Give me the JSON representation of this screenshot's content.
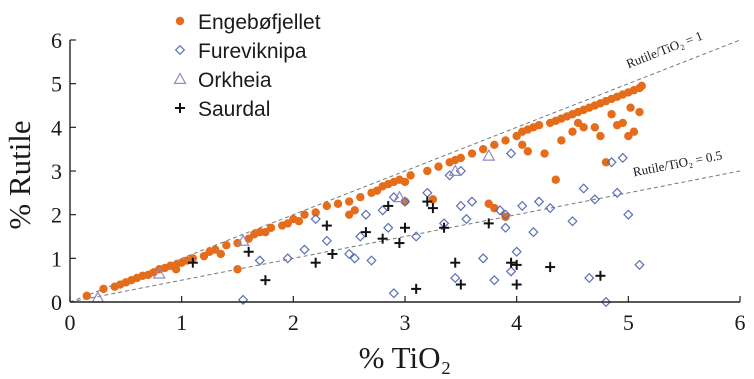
{
  "chart_data": {
    "type": "scatter",
    "xlabel": "% TiO₂",
    "ylabel": "% Rutile",
    "xlim": [
      0,
      6
    ],
    "ylim": [
      0,
      6
    ],
    "xticks": [
      "0",
      "1",
      "2",
      "3",
      "4",
      "5",
      "6"
    ],
    "yticks": [
      "0",
      "1",
      "2",
      "3",
      "4",
      "5",
      "6"
    ],
    "grid": false,
    "legend_position": "top-left",
    "series": [
      {
        "name": "Engebøfjellet",
        "marker": "filled-circle",
        "color": "#e46c1b",
        "points": [
          [
            0.15,
            0.14
          ],
          [
            0.3,
            0.3
          ],
          [
            0.4,
            0.35
          ],
          [
            0.45,
            0.4
          ],
          [
            0.5,
            0.45
          ],
          [
            0.55,
            0.5
          ],
          [
            0.6,
            0.55
          ],
          [
            0.65,
            0.6
          ],
          [
            0.7,
            0.62
          ],
          [
            0.75,
            0.68
          ],
          [
            0.8,
            0.75
          ],
          [
            0.85,
            0.78
          ],
          [
            0.9,
            0.83
          ],
          [
            0.95,
            0.85
          ],
          [
            1.0,
            0.9
          ],
          [
            1.05,
            0.95
          ],
          [
            1.1,
            1.0
          ],
          [
            1.2,
            1.05
          ],
          [
            1.25,
            1.15
          ],
          [
            1.3,
            1.2
          ],
          [
            1.4,
            1.3
          ],
          [
            1.5,
            1.35
          ],
          [
            1.6,
            1.45
          ],
          [
            1.65,
            1.55
          ],
          [
            1.7,
            1.6
          ],
          [
            1.75,
            1.6
          ],
          [
            1.8,
            1.7
          ],
          [
            1.9,
            1.75
          ],
          [
            1.95,
            1.8
          ],
          [
            2.0,
            1.9
          ],
          [
            2.1,
            2.0
          ],
          [
            2.2,
            2.05
          ],
          [
            2.3,
            2.2
          ],
          [
            2.4,
            2.25
          ],
          [
            2.5,
            2.3
          ],
          [
            2.6,
            2.4
          ],
          [
            2.7,
            2.5
          ],
          [
            2.8,
            2.65
          ],
          [
            2.85,
            2.7
          ],
          [
            2.9,
            2.75
          ],
          [
            2.95,
            2.8
          ],
          [
            3.0,
            2.75
          ],
          [
            3.05,
            2.9
          ],
          [
            3.2,
            3.0
          ],
          [
            3.3,
            3.1
          ],
          [
            3.4,
            3.2
          ],
          [
            3.45,
            3.25
          ],
          [
            3.5,
            3.3
          ],
          [
            3.6,
            3.4
          ],
          [
            3.7,
            3.5
          ],
          [
            3.8,
            3.6
          ],
          [
            3.9,
            3.7
          ],
          [
            4.0,
            3.8
          ],
          [
            4.05,
            3.9
          ],
          [
            4.1,
            3.95
          ],
          [
            4.15,
            4.0
          ],
          [
            4.2,
            4.05
          ],
          [
            4.3,
            4.1
          ],
          [
            4.35,
            4.15
          ],
          [
            4.4,
            4.2
          ],
          [
            4.45,
            4.25
          ],
          [
            4.5,
            4.3
          ],
          [
            4.55,
            4.35
          ],
          [
            4.6,
            4.4
          ],
          [
            4.65,
            4.45
          ],
          [
            4.7,
            4.5
          ],
          [
            4.75,
            4.55
          ],
          [
            4.8,
            4.6
          ],
          [
            4.85,
            4.65
          ],
          [
            4.9,
            4.7
          ],
          [
            4.95,
            4.75
          ],
          [
            5.0,
            4.8
          ],
          [
            5.05,
            4.85
          ],
          [
            5.1,
            4.9
          ],
          [
            5.12,
            4.95
          ],
          [
            0.95,
            0.75
          ],
          [
            1.5,
            0.75
          ],
          [
            1.35,
            1.1
          ],
          [
            2.05,
            1.85
          ],
          [
            2.5,
            2.0
          ],
          [
            2.55,
            2.1
          ],
          [
            2.75,
            2.55
          ],
          [
            3.0,
            2.3
          ],
          [
            3.25,
            2.35
          ],
          [
            3.75,
            2.25
          ],
          [
            3.8,
            2.15
          ],
          [
            3.9,
            1.95
          ],
          [
            4.05,
            3.6
          ],
          [
            4.1,
            3.45
          ],
          [
            4.35,
            2.8
          ],
          [
            4.4,
            3.7
          ],
          [
            4.5,
            3.9
          ],
          [
            4.55,
            4.1
          ],
          [
            4.7,
            4.0
          ],
          [
            4.75,
            3.8
          ],
          [
            4.8,
            3.2
          ],
          [
            4.85,
            4.3
          ],
          [
            4.95,
            4.1
          ],
          [
            5.0,
            3.8
          ],
          [
            5.02,
            4.45
          ],
          [
            5.05,
            3.9
          ],
          [
            5.1,
            4.35
          ],
          [
            4.25,
            3.4
          ],
          [
            4.6,
            4.0
          ],
          [
            4.9,
            4.05
          ]
        ]
      },
      {
        "name": "Fureviknipa",
        "marker": "open-diamond",
        "color": "#5a6fb5",
        "points": [
          [
            1.55,
            0.05
          ],
          [
            1.7,
            0.95
          ],
          [
            1.95,
            1.0
          ],
          [
            2.1,
            1.2
          ],
          [
            2.2,
            1.9
          ],
          [
            2.3,
            1.4
          ],
          [
            2.5,
            1.1
          ],
          [
            2.55,
            1.0
          ],
          [
            2.6,
            1.5
          ],
          [
            2.65,
            2.0
          ],
          [
            2.7,
            0.95
          ],
          [
            2.8,
            2.1
          ],
          [
            2.85,
            1.7
          ],
          [
            2.9,
            0.2
          ],
          [
            3.0,
            2.3
          ],
          [
            3.1,
            1.5
          ],
          [
            3.2,
            2.5
          ],
          [
            3.35,
            1.8
          ],
          [
            3.45,
            0.55
          ],
          [
            3.5,
            2.2
          ],
          [
            3.55,
            1.9
          ],
          [
            3.6,
            2.3
          ],
          [
            3.7,
            1.0
          ],
          [
            3.8,
            0.5
          ],
          [
            3.85,
            2.1
          ],
          [
            3.9,
            1.7
          ],
          [
            3.95,
            0.7
          ],
          [
            4.0,
            1.15
          ],
          [
            4.05,
            2.2
          ],
          [
            4.15,
            1.6
          ],
          [
            4.2,
            2.3
          ],
          [
            4.3,
            2.15
          ],
          [
            4.5,
            1.85
          ],
          [
            4.6,
            2.6
          ],
          [
            4.65,
            0.55
          ],
          [
            4.7,
            2.35
          ],
          [
            4.8,
            0.0
          ],
          [
            4.85,
            3.2
          ],
          [
            4.9,
            2.5
          ],
          [
            4.95,
            3.3
          ],
          [
            5.0,
            2.0
          ],
          [
            5.1,
            0.85
          ],
          [
            3.9,
            2.0
          ],
          [
            3.95,
            3.4
          ],
          [
            3.5,
            3.0
          ],
          [
            3.4,
            2.9
          ],
          [
            2.9,
            2.4
          ]
        ]
      },
      {
        "name": "Orkheia",
        "marker": "open-triangle",
        "color": "#9489c0",
        "points": [
          [
            0.25,
            0.1
          ],
          [
            0.8,
            0.65
          ],
          [
            1.55,
            1.4
          ],
          [
            2.95,
            2.4
          ],
          [
            3.45,
            3.0
          ],
          [
            3.75,
            3.35
          ]
        ]
      },
      {
        "name": "Saurdal",
        "marker": "plus",
        "color": "#111111",
        "points": [
          [
            1.1,
            0.9
          ],
          [
            1.6,
            1.15
          ],
          [
            1.75,
            0.5
          ],
          [
            2.2,
            0.9
          ],
          [
            2.3,
            1.75
          ],
          [
            2.35,
            1.1
          ],
          [
            2.65,
            1.6
          ],
          [
            2.8,
            1.45
          ],
          [
            2.85,
            2.2
          ],
          [
            2.95,
            1.35
          ],
          [
            3.0,
            1.7
          ],
          [
            3.1,
            0.3
          ],
          [
            3.2,
            2.3
          ],
          [
            3.25,
            2.15
          ],
          [
            3.35,
            1.7
          ],
          [
            3.45,
            0.9
          ],
          [
            3.5,
            0.4
          ],
          [
            3.75,
            1.8
          ],
          [
            3.95,
            0.9
          ],
          [
            4.0,
            0.4
          ],
          [
            4.0,
            0.85
          ],
          [
            4.3,
            0.8
          ],
          [
            4.75,
            0.6
          ]
        ]
      }
    ],
    "reference_lines": [
      {
        "label": "Rutile/TiO₂ = 1",
        "slope": 1.0
      },
      {
        "label": "Rutile/TiO₂ = 0.5",
        "slope": 0.5
      }
    ]
  }
}
